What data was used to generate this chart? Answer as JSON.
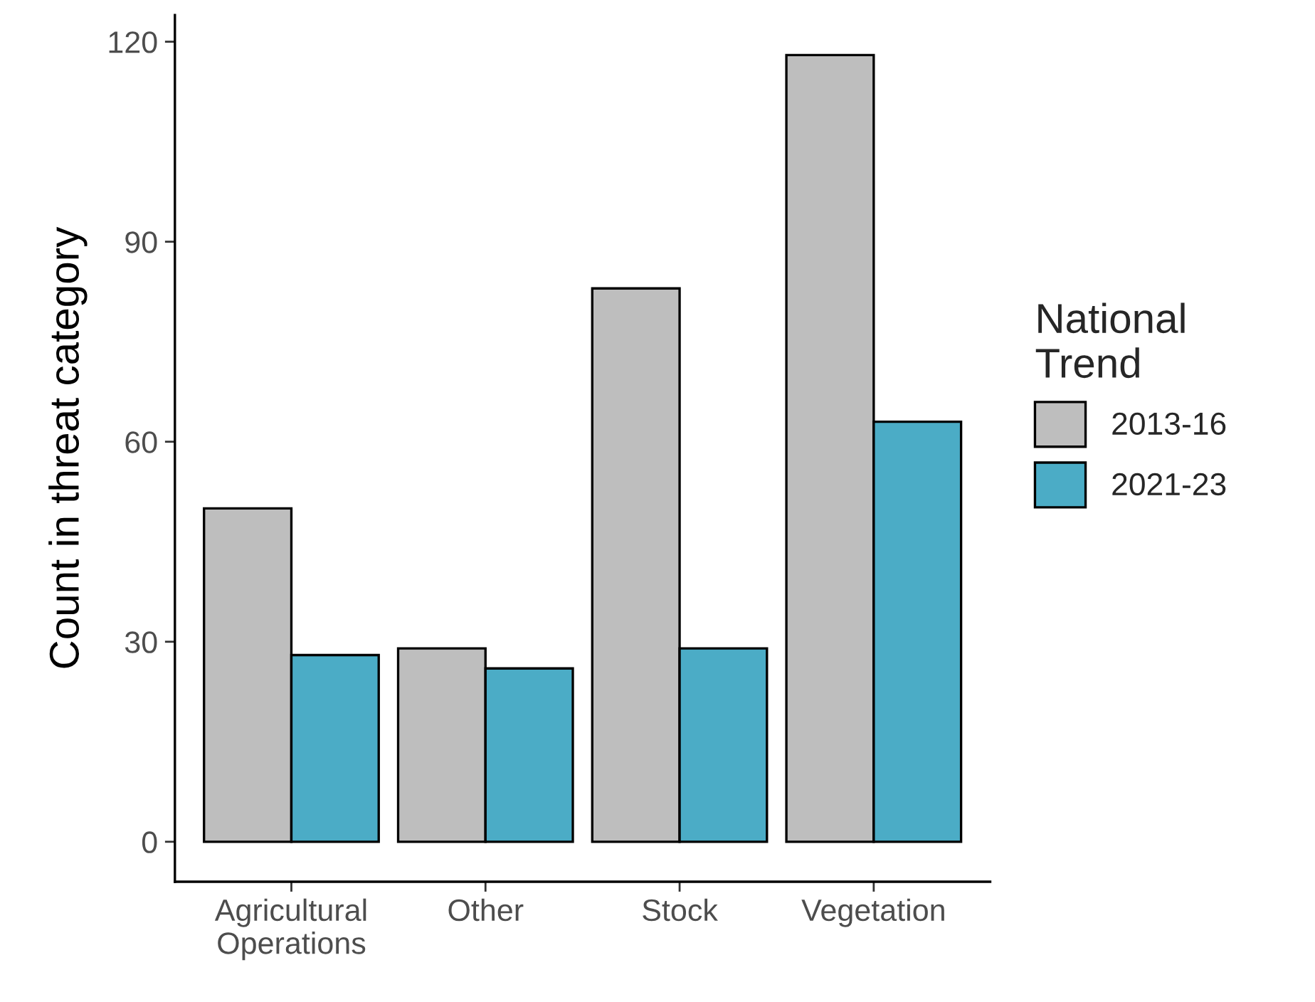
{
  "chart_data": {
    "type": "bar",
    "ylabel": "Count in threat category",
    "legend_title": "National\nTrend",
    "categories": [
      "Agricultural\nOperations",
      "Other",
      "Stock",
      "Vegetation"
    ],
    "series": [
      {
        "name": "2013-16",
        "color": "#bebebe",
        "values": [
          50,
          29,
          83,
          118
        ]
      },
      {
        "name": "2021-23",
        "color": "#4bacc6",
        "values": [
          28,
          26,
          29,
          63
        ]
      }
    ],
    "ylim": [
      -6,
      124
    ],
    "yticks": [
      0,
      30,
      60,
      90,
      120
    ],
    "grid": false,
    "legend": "right"
  }
}
